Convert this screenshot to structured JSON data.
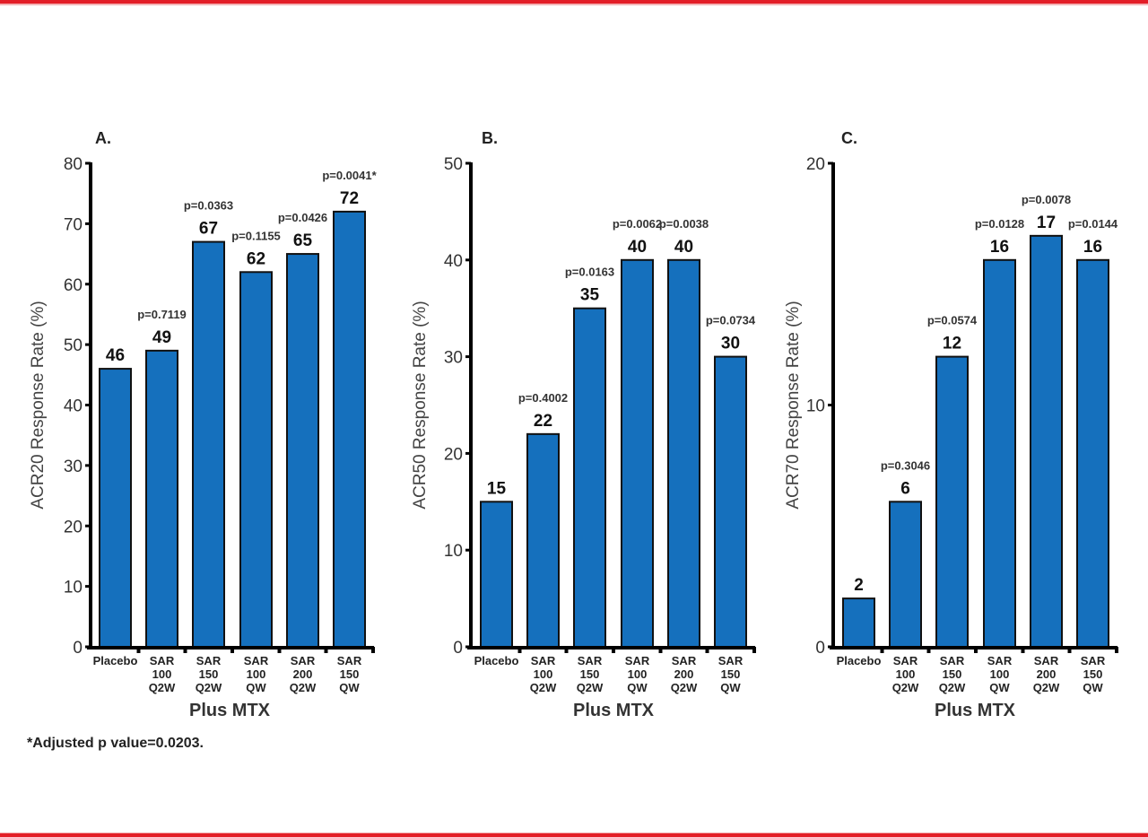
{
  "footnote": "*Adjusted p value=0.0203.",
  "colors": {
    "bar": "#1570bd",
    "bar_stroke": "#111111",
    "frame_red": "#e31e27"
  },
  "chart_data": [
    {
      "type": "bar",
      "panel": "A.",
      "title": "",
      "ylabel": "ACR20 Response Rate (%)",
      "xlabel": "Plus MTX",
      "ylim": [
        0,
        80
      ],
      "yticks": [
        0,
        10,
        20,
        30,
        40,
        50,
        60,
        70,
        80
      ],
      "grid": false,
      "categories": [
        [
          "Placebo"
        ],
        [
          "SAR",
          "100",
          "Q2W"
        ],
        [
          "SAR",
          "150",
          "Q2W"
        ],
        [
          "SAR",
          "100",
          "QW"
        ],
        [
          "SAR",
          "200",
          "Q2W"
        ],
        [
          "SAR",
          "150",
          "QW"
        ]
      ],
      "values": [
        46,
        49,
        67,
        62,
        65,
        72
      ],
      "value_labels": [
        "46",
        "49",
        "67",
        "62",
        "65",
        "72"
      ],
      "p_values": [
        "",
        "p=0.7119",
        "p=0.0363",
        "p=0.1155",
        "p=0.0426",
        "p=0.0041*"
      ]
    },
    {
      "type": "bar",
      "panel": "B.",
      "title": "",
      "ylabel": "ACR50 Response Rate (%)",
      "xlabel": "Plus MTX",
      "ylim": [
        0,
        50
      ],
      "yticks": [
        0,
        10,
        20,
        30,
        40,
        50
      ],
      "grid": false,
      "categories": [
        [
          "Placebo"
        ],
        [
          "SAR",
          "100",
          "Q2W"
        ],
        [
          "SAR",
          "150",
          "Q2W"
        ],
        [
          "SAR",
          "100",
          "QW"
        ],
        [
          "SAR",
          "200",
          "Q2W"
        ],
        [
          "SAR",
          "150",
          "QW"
        ]
      ],
      "values": [
        15,
        22,
        35,
        40,
        40,
        30
      ],
      "value_labels": [
        "15",
        "22",
        "35",
        "40",
        "40",
        "30"
      ],
      "p_values": [
        "",
        "p=0.4002",
        "p=0.0163",
        "p=0.0062",
        "p=0.0038",
        "p=0.0734"
      ]
    },
    {
      "type": "bar",
      "panel": "C.",
      "title": "",
      "ylabel": "ACR70 Response Rate (%)",
      "xlabel": "Plus MTX",
      "ylim": [
        0,
        20
      ],
      "yticks": [
        0,
        10,
        20
      ],
      "grid": false,
      "categories": [
        [
          "Placebo"
        ],
        [
          "SAR",
          "100",
          "Q2W"
        ],
        [
          "SAR",
          "150",
          "Q2W"
        ],
        [
          "SAR",
          "100",
          "QW"
        ],
        [
          "SAR",
          "200",
          "Q2W"
        ],
        [
          "SAR",
          "150",
          "QW"
        ]
      ],
      "values": [
        2,
        6,
        12,
        16,
        17,
        16
      ],
      "value_labels": [
        "2",
        "6",
        "12",
        "16",
        "17",
        "16"
      ],
      "p_values": [
        "",
        "p=0.3046",
        "p=0.0574",
        "p=0.0128",
        "p=0.0078",
        "p=0.0144"
      ]
    }
  ]
}
